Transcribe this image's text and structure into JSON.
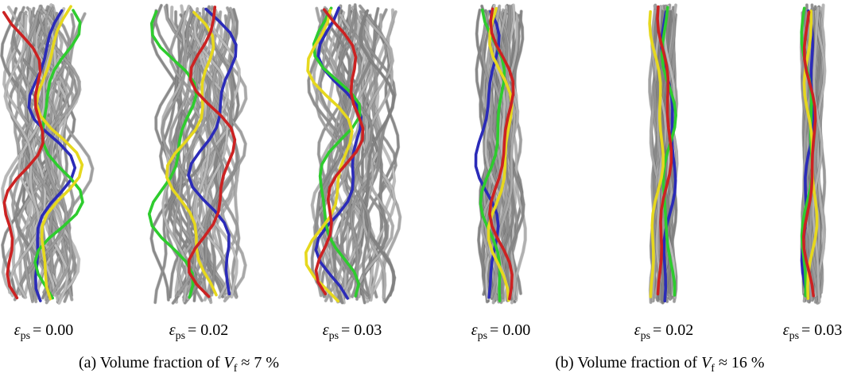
{
  "figure": {
    "panels": [
      {
        "labels": [
          {
            "symbol": "ε",
            "subscript": "ps",
            "value": "= 0.00"
          },
          {
            "symbol": "ε",
            "subscript": "ps",
            "value": "= 0.02"
          },
          {
            "symbol": "ε",
            "subscript": "ps",
            "value": "= 0.03"
          }
        ],
        "caption": {
          "prefix": "(a) Volume fraction of",
          "symbol": "V",
          "subscript": "f",
          "suffix": "≈ 7 %"
        }
      },
      {
        "labels": [
          {
            "symbol": "ε",
            "subscript": "ps",
            "value": "= 0.00"
          },
          {
            "symbol": "ε",
            "subscript": "ps",
            "value": "= 0.02"
          },
          {
            "symbol": "ε",
            "subscript": "ps",
            "value": "= 0.03"
          }
        ],
        "caption": {
          "prefix": "(b) Volume fraction of",
          "symbol": "V",
          "subscript": "f",
          "suffix": "≈ 16 %"
        }
      }
    ]
  }
}
